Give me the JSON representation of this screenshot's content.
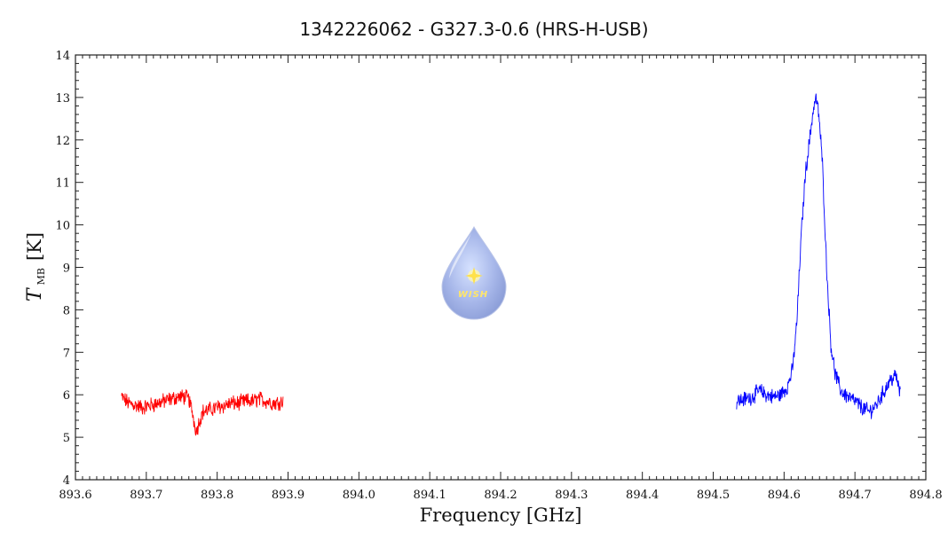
{
  "chart_data": {
    "type": "line",
    "title": "1342226062 - G327.3-0.6 (HRS-H-USB)",
    "xlabel": "Frequency [GHz]",
    "ylabel": {
      "symbol": "T",
      "subscript": "MB",
      "unit": "[K]"
    },
    "xlim": [
      893.6,
      894.8
    ],
    "ylim": [
      4,
      14
    ],
    "x_ticks": [
      "893.6",
      "893.7",
      "893.8",
      "893.9",
      "894.0",
      "894.1",
      "894.2",
      "894.3",
      "894.4",
      "894.5",
      "894.6",
      "894.7",
      "894.8"
    ],
    "y_ticks": [
      "4",
      "5",
      "6",
      "7",
      "8",
      "9",
      "10",
      "11",
      "12",
      "13",
      "14"
    ],
    "grid": false,
    "logo_text": "WISH",
    "series": [
      {
        "color": "#ff0000",
        "x": [
          893.665,
          893.675,
          893.685,
          893.695,
          893.705,
          893.715,
          893.725,
          893.735,
          893.745,
          893.755,
          893.76,
          893.765,
          893.768,
          893.771,
          893.775,
          893.78,
          893.79,
          893.8,
          893.81,
          893.82,
          893.83,
          893.84,
          893.85,
          893.86,
          893.87,
          893.88,
          893.893
        ],
        "y": [
          5.95,
          5.8,
          5.75,
          5.7,
          5.75,
          5.8,
          5.85,
          5.9,
          5.95,
          5.95,
          5.9,
          5.6,
          5.3,
          5.15,
          5.4,
          5.6,
          5.65,
          5.7,
          5.75,
          5.8,
          5.8,
          5.85,
          5.85,
          5.9,
          5.85,
          5.8,
          5.85
        ]
      },
      {
        "color": "#0000ff",
        "x": [
          894.533,
          894.545,
          894.555,
          894.565,
          894.575,
          894.585,
          894.595,
          894.605,
          894.612,
          894.618,
          894.624,
          894.63,
          894.636,
          894.641,
          894.645,
          894.649,
          894.654,
          894.66,
          894.666,
          894.672,
          894.68,
          894.69,
          894.7,
          894.71,
          894.72,
          894.73,
          894.74,
          894.75,
          894.758,
          894.764
        ],
        "y": [
          5.85,
          5.9,
          5.95,
          6.1,
          6.0,
          5.95,
          6.0,
          6.2,
          6.6,
          7.7,
          9.7,
          11.2,
          12.0,
          12.7,
          13.0,
          12.6,
          11.5,
          9.0,
          7.2,
          6.5,
          6.1,
          5.95,
          5.85,
          5.7,
          5.6,
          5.75,
          6.05,
          6.35,
          6.45,
          6.0
        ]
      }
    ]
  }
}
